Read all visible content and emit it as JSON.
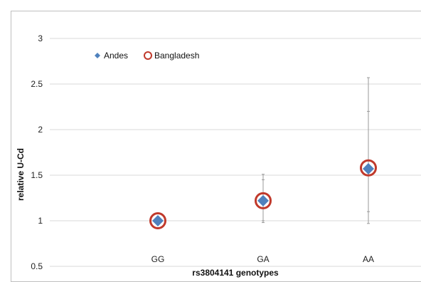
{
  "chart_data": {
    "type": "scatter",
    "categories": [
      "GG",
      "GA",
      "AA"
    ],
    "xlabel": "rs3804141 genotypes",
    "ylabel": "relative U-Cd",
    "ylim": [
      0.5,
      3
    ],
    "yticks": [
      "0.5",
      "1",
      "1.5",
      "2",
      "2.5",
      "3"
    ],
    "grid": true,
    "legend_position": "top-left",
    "series": [
      {
        "name": "Andes",
        "marker": "diamond",
        "color": "#4f81bd",
        "values": [
          1.0,
          1.22,
          1.57
        ],
        "error_low": [
          1.0,
          1.0,
          1.1
        ],
        "error_high": [
          1.0,
          1.45,
          2.2
        ]
      },
      {
        "name": "Bangladesh",
        "marker": "open-circle",
        "color": "#c0392b",
        "values": [
          1.0,
          1.22,
          1.58
        ],
        "error_low": [
          1.0,
          0.98,
          0.97
        ],
        "error_high": [
          1.0,
          1.51,
          2.57
        ]
      }
    ]
  }
}
